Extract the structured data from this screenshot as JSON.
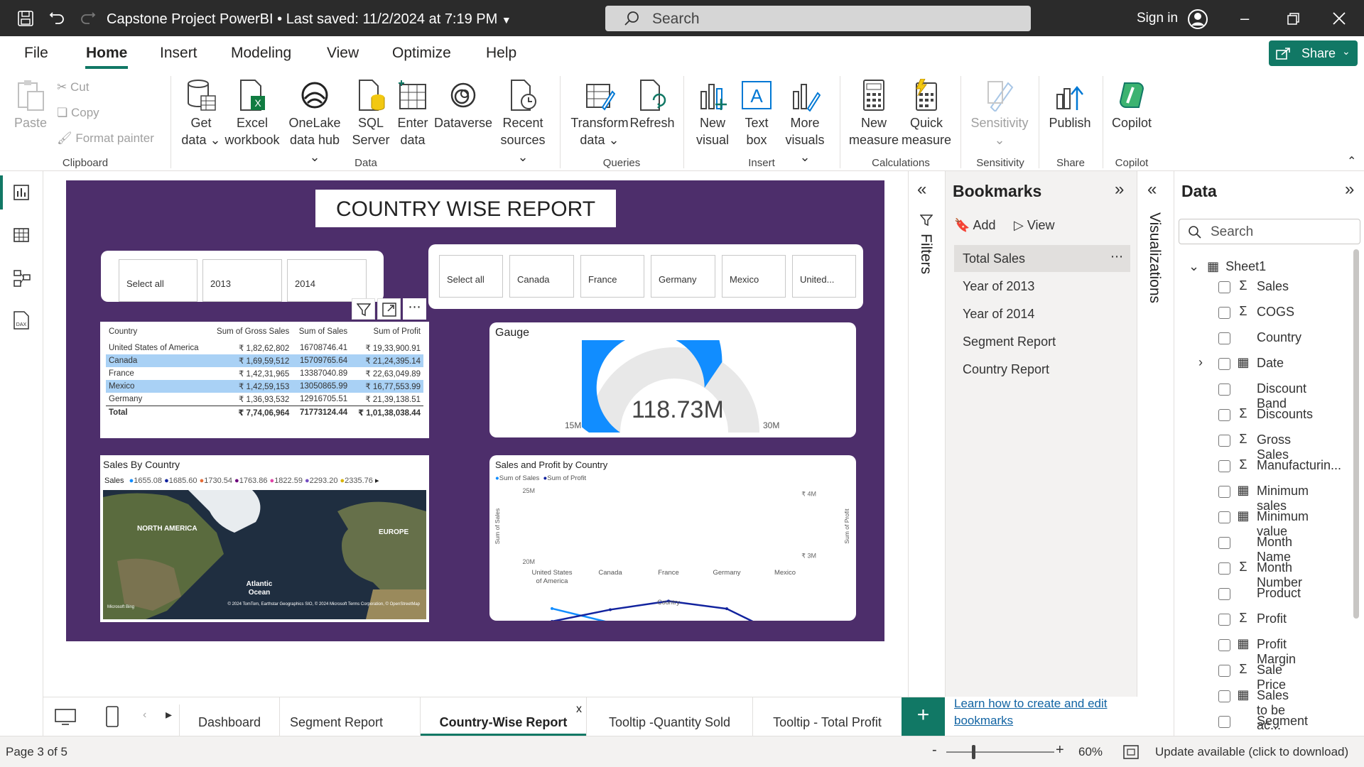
{
  "titlebar": {
    "title": "Capstone Project PowerBI",
    "saved": "Last saved: 11/2/2024 at 7:19 PM",
    "search_placeholder": "Search",
    "signin": "Sign in"
  },
  "menu": {
    "tabs": [
      "File",
      "Home",
      "Insert",
      "Modeling",
      "View",
      "Optimize",
      "Help"
    ],
    "share": "Share"
  },
  "ribbon": {
    "clipboard": {
      "paste": "Paste",
      "cut": "Cut",
      "copy": "Copy",
      "format_painter": "Format painter",
      "group": "Clipboard"
    },
    "data": {
      "get_data_1": "Get",
      "get_data_2": "data",
      "excel_1": "Excel",
      "excel_2": "workbook",
      "onelake_1": "OneLake",
      "onelake_2": "data hub",
      "sql_1": "SQL",
      "sql_2": "Server",
      "enter_1": "Enter",
      "enter_2": "data",
      "dataverse": "Dataverse",
      "recent_1": "Recent",
      "recent_2": "sources",
      "group": "Data"
    },
    "queries": {
      "transform_1": "Transform",
      "transform_2": "data",
      "refresh": "Refresh",
      "group": "Queries"
    },
    "insert": {
      "newvisual_1": "New",
      "newvisual_2": "visual",
      "textbox_1": "Text",
      "textbox_2": "box",
      "more_1": "More",
      "more_2": "visuals",
      "group": "Insert"
    },
    "calculations": {
      "newmeasure_1": "New",
      "newmeasure_2": "measure",
      "quick_1": "Quick",
      "quick_2": "measure",
      "group": "Calculations"
    },
    "sensitivity": {
      "label": "Sensitivity",
      "group": "Sensitivity"
    },
    "share": {
      "publish": "Publish",
      "group": "Share"
    },
    "copilot": {
      "label": "Copilot",
      "group": "Copilot"
    }
  },
  "report": {
    "title": "COUNTRY WISE REPORT",
    "year_slicer": [
      "Select all",
      "2013",
      "2014"
    ],
    "country_slicer": [
      "Select all",
      "Canada",
      "France",
      "Germany",
      "Mexico",
      "United..."
    ],
    "table": {
      "headers": [
        "Country",
        "Sum of Gross Sales",
        "Sum of Sales",
        "Sum of Profit"
      ],
      "rows": [
        [
          "United States of America",
          "₹ 1,82,62,802",
          "16708746.41",
          "₹ 19,33,900.91"
        ],
        [
          "Canada",
          "₹ 1,69,59,512",
          "15709765.64",
          "₹ 21,24,395.14"
        ],
        [
          "France",
          "₹ 1,42,31,965",
          "13387040.89",
          "₹ 22,63,049.89"
        ],
        [
          "Mexico",
          "₹ 1,42,59,153",
          "13050865.99",
          "₹ 16,77,553.99"
        ],
        [
          "Germany",
          "₹ 1,36,93,532",
          "12916705.51",
          "₹ 21,39,138.51"
        ]
      ],
      "total": [
        "Total",
        "₹ 7,74,06,964",
        "71773124.44",
        "₹ 1,01,38,038.44"
      ]
    },
    "gauge": {
      "title": "Gauge",
      "value": "118.73M",
      "min": "15M",
      "max": "30M",
      "fraction": 0.69
    },
    "map": {
      "title": "Sales By Country",
      "legend_label": "Sales",
      "legend": [
        {
          "v": "1655.08",
          "c": "#118dff"
        },
        {
          "v": "1685.60",
          "c": "#12239e"
        },
        {
          "v": "1730.54",
          "c": "#e66c37"
        },
        {
          "v": "1763.86",
          "c": "#6b007b"
        },
        {
          "v": "1822.59",
          "c": "#e044a7"
        },
        {
          "v": "2293.20",
          "c": "#744ec2"
        },
        {
          "v": "2335.76",
          "c": "#d9b300"
        }
      ],
      "label_na": "NORTH AMERICA",
      "label_eu": "EUROPE",
      "label_ocean_1": "Atlantic",
      "label_ocean_2": "Ocean",
      "bing": "Microsoft Bing",
      "credit": "© 2024 TomTom, Earthstar Geographics SIO, © 2024 Microsoft Terms Corporation, © OpenStreetMap"
    }
  },
  "chart_data": {
    "type": "line",
    "title": "Sales and Profit by Country",
    "xlabel": "Country",
    "ylabel": "Sum of Sales",
    "y2label": "Sum of Profit",
    "categories": [
      "United States of America",
      "Canada",
      "France",
      "Germany",
      "Mexico"
    ],
    "category_labels": [
      [
        "United States",
        "of America"
      ],
      [
        "Canada"
      ],
      [
        "France"
      ],
      [
        "Germany"
      ],
      [
        "Mexico"
      ]
    ],
    "series": [
      {
        "name": "Sum of Sales",
        "axis": "left",
        "color": "#118dff",
        "values": [
          16708746.41,
          15709765.64,
          13387040.89,
          12916705.51,
          13050865.99
        ]
      },
      {
        "name": "Sum of Profit",
        "axis": "right",
        "color": "#12239e",
        "values": [
          1933900.91,
          2124395.14,
          2263049.89,
          2139138.51,
          1677553.99
        ]
      }
    ],
    "legend_prefix": "",
    "ylim": [
      20000000,
      25000000
    ],
    "y2lim": [
      2900000,
      4050000
    ],
    "yticks": [
      {
        "v": 25000000,
        "l": "25M"
      },
      {
        "v": 20000000,
        "l": "20M"
      }
    ],
    "y2ticks": [
      {
        "v": 4000000,
        "l": "₹ 4M"
      },
      {
        "v": 3000000,
        "l": "₹ 3M"
      }
    ]
  },
  "bookmarks": {
    "title": "Bookmarks",
    "add": "Add",
    "view": "View",
    "items": [
      "Total Sales",
      "Year of 2013",
      "Year of 2014",
      "Segment Report",
      "Country Report"
    ],
    "learn_1": "Learn how to create and edit",
    "learn_2": "bookmarks"
  },
  "filters_label": "Filters",
  "visualizations_label": "Visualizations",
  "datapane": {
    "title": "Data",
    "search_placeholder": "Search",
    "table": "Sheet1",
    "fields": [
      {
        "n": "Sales",
        "t": "Σ"
      },
      {
        "n": "COGS",
        "t": "Σ"
      },
      {
        "n": "Country",
        "t": ""
      },
      {
        "n": "Date",
        "t": "cal"
      },
      {
        "n": "Discount Band",
        "t": ""
      },
      {
        "n": "Discounts",
        "t": "Σ"
      },
      {
        "n": "Gross Sales",
        "t": "Σ"
      },
      {
        "n": "Manufacturin...",
        "t": "Σ"
      },
      {
        "n": "Minimum sales",
        "t": "calc"
      },
      {
        "n": "Minimum value",
        "t": "calc"
      },
      {
        "n": "Month Name",
        "t": ""
      },
      {
        "n": "Month Number",
        "t": "Σ"
      },
      {
        "n": "Product",
        "t": ""
      },
      {
        "n": "Profit",
        "t": "Σ"
      },
      {
        "n": "Profit Margin",
        "t": "calc"
      },
      {
        "n": "Sale Price",
        "t": "Σ"
      },
      {
        "n": "Sales to be ac...",
        "t": "calc"
      },
      {
        "n": "Segment",
        "t": ""
      }
    ]
  },
  "pagetabs": [
    "Dashboard",
    "Segment Report",
    "Country-Wise Report",
    "Tooltip -Quantity Sold",
    "Tooltip - Total Profit"
  ],
  "status": {
    "page": "Page 3 of 5",
    "zoom": "60%",
    "update": "Update available (click to download)"
  },
  "colors": {
    "accent": "#118dff",
    "page_bg": "#4d2e6b",
    "share_green": "#117865",
    "tab_underline": "#117865"
  }
}
